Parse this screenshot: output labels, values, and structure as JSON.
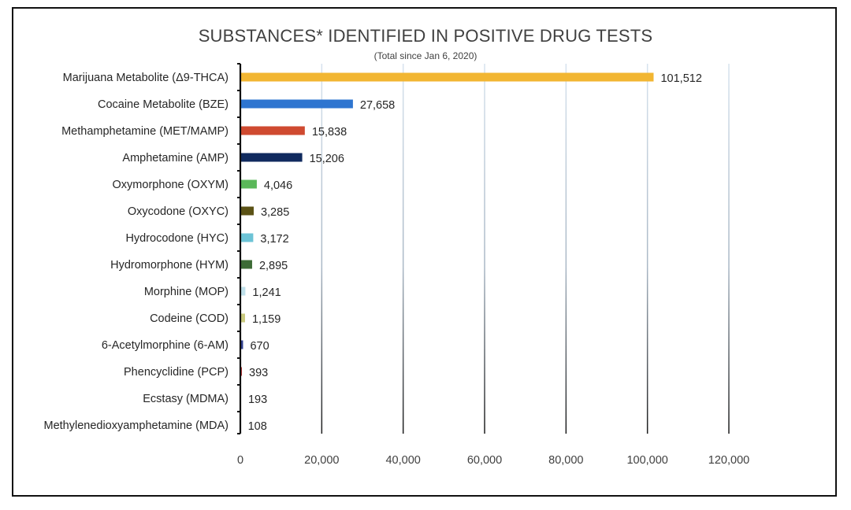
{
  "chart_data": {
    "type": "bar",
    "orientation": "horizontal",
    "title": "SUBSTANCES* IDENTIFIED IN POSITIVE DRUG TESTS",
    "subtitle": "(Total since Jan 6, 2020)",
    "categories": [
      "Marijuana Metabolite (Δ9-THCA)",
      "Cocaine Metabolite (BZE)",
      "Methamphetamine (MET/MAMP)",
      "Amphetamine (AMP)",
      "Oxymorphone (OXYM)",
      "Oxycodone (OXYC)",
      "Hydrocodone (HYC)",
      "Hydromorphone (HYM)",
      "Morphine (MOP)",
      "Codeine (COD)",
      "6-Acetylmorphine (6-AM)",
      "Phencyclidine (PCP)",
      "Ecstasy (MDMA)",
      "Methylenedioxyamphetamine (MDA)"
    ],
    "values": [
      101512,
      27658,
      15838,
      15206,
      4046,
      3285,
      3172,
      2895,
      1241,
      1159,
      670,
      393,
      193,
      108
    ],
    "value_labels": [
      "101,512",
      "27,658",
      "15,838",
      "15,206",
      "4,046",
      "3,285",
      "3,172",
      "2,895",
      "1,241",
      "1,159",
      "670",
      "393",
      "193",
      "108"
    ],
    "bar_colors": [
      "#f2b632",
      "#2e75d0",
      "#cf4a30",
      "#102a5e",
      "#5bb85a",
      "#5b5215",
      "#6cc3d6",
      "#3d6b36",
      "#bfe0ea",
      "#c9c97e",
      "#2f3f8f",
      "#b03030",
      "#e8e8e8",
      "#e8e8e8"
    ],
    "xlim": [
      0,
      120000
    ],
    "xticks": [
      0,
      20000,
      40000,
      60000,
      80000,
      100000,
      120000
    ],
    "xtick_labels": [
      "0",
      "20,000",
      "40,000",
      "60,000",
      "80,000",
      "100,000",
      "120,000"
    ],
    "grid": true
  }
}
